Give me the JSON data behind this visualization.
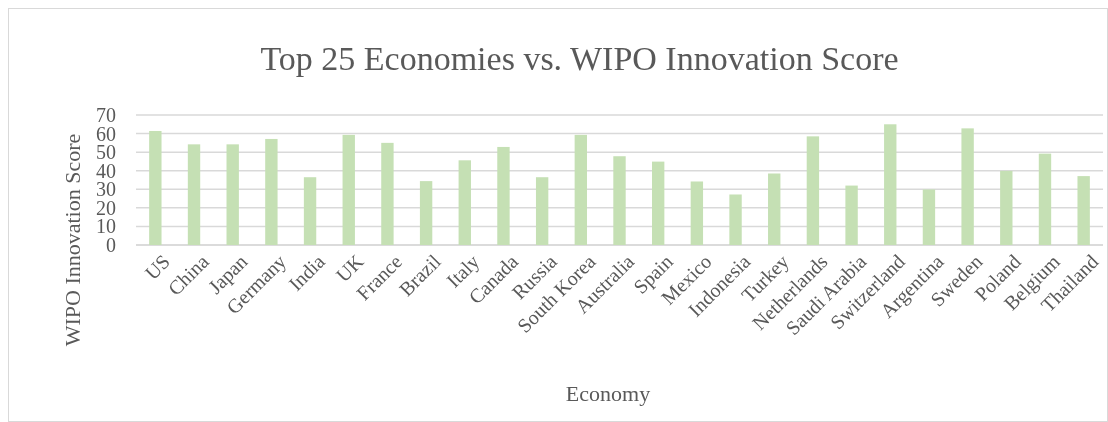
{
  "chart_data": {
    "type": "bar",
    "title": "Top 25 Economies vs. WIPO Innovation Score",
    "xlabel": "Economy",
    "ylabel": "WIPO Innovation Score",
    "categories": [
      "US",
      "China",
      "Japan",
      "Germany",
      "India",
      "UK",
      "France",
      "Brazil",
      "Italy",
      "Canada",
      "Russia",
      "South Korea",
      "Australia",
      "Spain",
      "Mexico",
      "Indonesia",
      "Turkey",
      "Netherlands",
      "Saudi Arabia",
      "Switzerland",
      "Argentina",
      "Sweden",
      "Poland",
      "Belgium",
      "Thailand"
    ],
    "values": [
      61.4,
      54.2,
      54.2,
      57.1,
      36.5,
      59.3,
      55.0,
      34.4,
      45.6,
      52.8,
      36.5,
      59.3,
      47.8,
      44.9,
      34.2,
      27.2,
      38.5,
      58.5,
      32.0,
      65.0,
      29.9,
      62.8,
      39.9,
      49.2,
      37.1
    ],
    "color": "#c5e0b4",
    "ylim": [
      0,
      70
    ],
    "yticks": [
      0,
      10,
      20,
      30,
      40,
      50,
      60,
      70
    ],
    "grid": "y"
  }
}
